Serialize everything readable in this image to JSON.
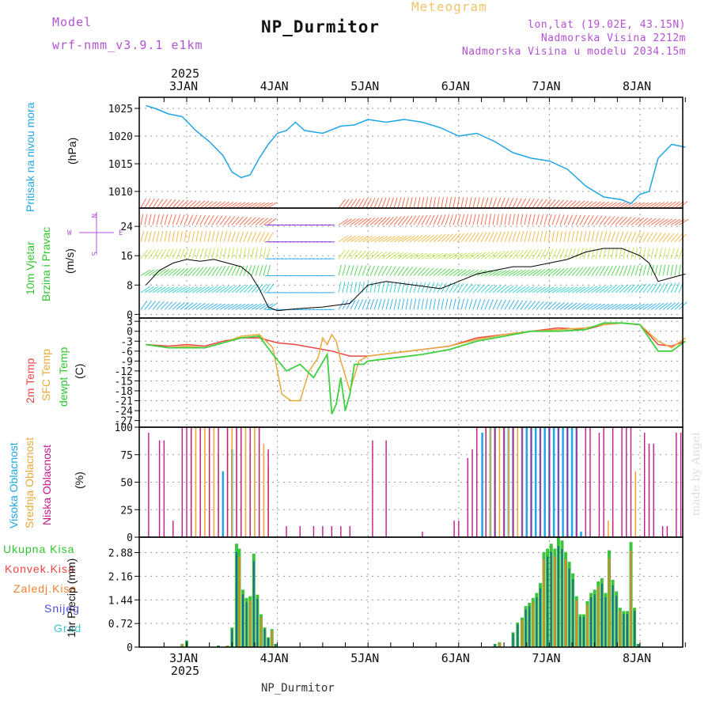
{
  "header": {
    "model_label": "Model",
    "model_name": "wrf-nmm_v3.9.1 e1km",
    "title": "NP_Durmitor",
    "meteogram_label": "Meteogram",
    "coords": "lon,lat (19.02E, 43.15N)",
    "altitude": "Nadmorska Visina 2212m",
    "model_altitude": "Nadmorska Visina u modelu 2034.15m"
  },
  "time_axis": {
    "year": "2025",
    "days": [
      "3JAN",
      "4JAN",
      "5JAN",
      "6JAN",
      "7JAN",
      "8JAN"
    ]
  },
  "footer": {
    "station": "NP_Durmitor",
    "credit": "made by Angel"
  },
  "colors": {
    "pressure": "#1fa6e6",
    "temp2m": "#ee4444",
    "sfc": "#e8a93a",
    "dew": "#3fcf3f",
    "cloud_high": "#1fa6e6",
    "cloud_mid": "#e8a93a",
    "cloud_low": "#c41a8a",
    "rain_total": "#3cc43c",
    "rain_conv": "#ee4444",
    "rain_frz": "#f07f2f",
    "snow": "#4b4bd8",
    "hail": "#3cc8c8"
  },
  "chart_data": [
    {
      "type": "line",
      "ylabel_left": "Pritisak na nivou mora",
      "ylabel_unit": "(hPa)",
      "y_ticks": [
        "1025",
        "1020",
        "1015",
        "1010"
      ],
      "ylim": [
        1007,
        1027
      ],
      "x_day_range": [
        2.55,
        8.55
      ],
      "series": [
        {
          "name": "Pritisak na nivou mora",
          "x": [
            2.55,
            2.65,
            2.8,
            2.95,
            3.1,
            3.25,
            3.4,
            3.5,
            3.6,
            3.7,
            3.8,
            3.9,
            4.0,
            4.1,
            4.2,
            4.3,
            4.5,
            4.7,
            4.85,
            5.0,
            5.2,
            5.4,
            5.6,
            5.8,
            6.0,
            6.2,
            6.4,
            6.6,
            6.8,
            7.0,
            7.2,
            7.4,
            7.6,
            7.8,
            7.9,
            8.0,
            8.1,
            8.2,
            8.35,
            8.5
          ],
          "values": [
            1025.5,
            1025,
            1024,
            1023.5,
            1021,
            1019,
            1016.5,
            1013.5,
            1012.5,
            1013,
            1016,
            1018.5,
            1020.5,
            1021,
            1022.5,
            1021,
            1020.5,
            1021.8,
            1022,
            1023,
            1022.5,
            1023,
            1022.5,
            1021.5,
            1020,
            1020.5,
            1019,
            1017,
            1016,
            1015.5,
            1014,
            1011,
            1009,
            1008.5,
            1007.8,
            1009.5,
            1010,
            1016,
            1018.5,
            1018
          ]
        }
      ]
    },
    {
      "type": "line",
      "ylabel_left": "10m Vjetar",
      "ylabel_left2": "Brzina i Pravac",
      "ylabel_unit": "(m/s)",
      "y_ticks": [
        "24",
        "16",
        "8",
        "0"
      ],
      "ylim": [
        -1,
        29
      ],
      "x_day_range": [
        2.55,
        8.55
      ],
      "compass": {
        "n": "N",
        "w": "W",
        "e": "E",
        "s": "S"
      },
      "series": [
        {
          "name": "wind speed",
          "x": [
            2.55,
            2.7,
            2.85,
            3.0,
            3.15,
            3.3,
            3.45,
            3.6,
            3.7,
            3.8,
            3.9,
            4.0,
            4.2,
            4.5,
            4.8,
            5.0,
            5.2,
            5.5,
            5.8,
            6.0,
            6.2,
            6.4,
            6.6,
            6.8,
            7.0,
            7.2,
            7.4,
            7.6,
            7.8,
            8.0,
            8.1,
            8.2,
            8.35,
            8.5
          ],
          "values": [
            8,
            12,
            14,
            15,
            14.5,
            15,
            14,
            13,
            11,
            7,
            2,
            1,
            1.5,
            2,
            3,
            8,
            9,
            8,
            7,
            9,
            11,
            12,
            13,
            13,
            14,
            15,
            17,
            18,
            18,
            16,
            14,
            9,
            10,
            11
          ]
        }
      ]
    },
    {
      "type": "line",
      "ylabel_left": "2m Temp",
      "ylabel_left2": "SFC Temp",
      "ylabel_left3": "dewpt Temp",
      "ylabel_unit": "(C)",
      "y_ticks": [
        "3",
        "0",
        "-3",
        "-6",
        "-9",
        "-12",
        "-15",
        "-18",
        "-21",
        "-24",
        "-27"
      ],
      "ylim": [
        -29,
        4
      ],
      "x_day_range": [
        2.55,
        8.55
      ],
      "series": [
        {
          "name": "2m Temp",
          "x": [
            2.55,
            2.8,
            3.0,
            3.2,
            3.4,
            3.6,
            3.8,
            4.0,
            4.2,
            4.4,
            4.6,
            4.8,
            5.0,
            5.3,
            5.6,
            5.9,
            6.2,
            6.5,
            6.8,
            7.1,
            7.4,
            7.6,
            7.8,
            8.0,
            8.2,
            8.35,
            8.5
          ],
          "values": [
            -4,
            -4.5,
            -4,
            -4.5,
            -3,
            -2,
            -2,
            -3.5,
            -4,
            -5,
            -6,
            -7.5,
            -7.5,
            -6.5,
            -5.5,
            -4.5,
            -2,
            -1,
            0,
            1,
            0.5,
            2,
            2.5,
            2,
            -4,
            -4.5,
            -3
          ]
        },
        {
          "name": "SFC Temp",
          "x": [
            2.55,
            2.8,
            3.0,
            3.2,
            3.4,
            3.6,
            3.8,
            3.95,
            4.05,
            4.15,
            4.25,
            4.35,
            4.45,
            4.5,
            4.55,
            4.6,
            4.65,
            4.7,
            4.8,
            4.9,
            5.0,
            5.3,
            5.6,
            5.9,
            6.2,
            6.5,
            6.8,
            7.1,
            7.4,
            7.6,
            7.8,
            8.0,
            8.2,
            8.35,
            8.5
          ],
          "values": [
            -4,
            -5,
            -4.5,
            -5,
            -3.5,
            -1.5,
            -1,
            -5,
            -19,
            -21,
            -21,
            -12,
            -8,
            -2,
            -4,
            -1,
            -3,
            -9,
            -18,
            -9,
            -7.5,
            -6.5,
            -5.5,
            -4.5,
            -2.5,
            -1,
            0,
            0.5,
            1,
            2,
            2.5,
            2,
            -3,
            -5,
            -2
          ]
        },
        {
          "name": "dewpt Temp",
          "x": [
            2.55,
            2.8,
            3.0,
            3.2,
            3.4,
            3.6,
            3.8,
            3.95,
            4.1,
            4.25,
            4.4,
            4.55,
            4.6,
            4.65,
            4.7,
            4.75,
            4.8,
            4.85,
            4.95,
            5.0,
            5.3,
            5.6,
            5.9,
            6.2,
            6.5,
            6.8,
            7.1,
            7.4,
            7.6,
            7.8,
            8.0,
            8.2,
            8.35,
            8.5
          ],
          "values": [
            -4,
            -5,
            -5,
            -5,
            -3.5,
            -2,
            -1.5,
            -7,
            -12,
            -10,
            -14,
            -7,
            -25,
            -22,
            -14,
            -24,
            -19,
            -10,
            -10,
            -9,
            -8,
            -7,
            -5.5,
            -3,
            -1.5,
            0,
            0,
            0.5,
            2.5,
            2.5,
            2,
            -6,
            -6,
            -3
          ]
        }
      ]
    },
    {
      "type": "bar",
      "ylabel_left": "Visoka Oblacnost",
      "ylabel_left2": "Srednja Oblacnost",
      "ylabel_left3": "Niska Oblacnost",
      "ylabel_unit": "(%)",
      "y_ticks": [
        "100",
        "75",
        "50",
        "25",
        "0"
      ],
      "ylim": [
        0,
        100
      ],
      "x_day_range": [
        2.55,
        8.55
      ],
      "series": [
        {
          "name": "Visoka Oblacnost",
          "x": [
            3.4,
            3.5,
            6.26,
            6.35,
            6.4,
            6.5,
            6.55,
            6.6,
            6.7,
            6.75,
            6.8,
            6.85,
            6.9,
            6.95,
            7.0,
            7.05,
            7.1,
            7.15,
            7.2,
            7.25,
            7.3,
            7.35
          ],
          "values": [
            60,
            80,
            95,
            100,
            100,
            100,
            100,
            100,
            100,
            100,
            100,
            100,
            100,
            100,
            100,
            100,
            100,
            100,
            100,
            100,
            100,
            5
          ]
        },
        {
          "name": "Srednja Oblacnost",
          "x": [
            3.05,
            3.1,
            3.15,
            3.2,
            3.25,
            3.3,
            3.35,
            3.45,
            3.5,
            3.55,
            3.6,
            3.65,
            3.7,
            3.75,
            3.8,
            3.85,
            3.9,
            6.3,
            6.35,
            6.4,
            6.45,
            6.5,
            6.55,
            6.6,
            6.65,
            6.7,
            7.3,
            7.65,
            7.7,
            7.95
          ],
          "values": [
            100,
            100,
            100,
            100,
            100,
            100,
            75,
            100,
            100,
            100,
            100,
            100,
            85,
            100,
            100,
            85,
            65,
            100,
            100,
            100,
            100,
            100,
            100,
            100,
            100,
            100,
            100,
            15,
            15,
            60
          ]
        },
        {
          "name": "Niska Oblacnost",
          "x": [
            2.58,
            2.7,
            2.75,
            2.85,
            2.95,
            3.0,
            3.05,
            3.15,
            3.25,
            3.35,
            3.45,
            3.55,
            3.6,
            3.7,
            3.8,
            3.9,
            4.1,
            4.25,
            4.4,
            4.5,
            4.6,
            4.7,
            4.8,
            5.05,
            5.2,
            5.6,
            5.95,
            6.0,
            6.1,
            6.15,
            6.2,
            6.3,
            6.4,
            6.5,
            6.6,
            6.7,
            6.8,
            6.9,
            7.0,
            7.1,
            7.2,
            7.3,
            7.4,
            7.45,
            7.55,
            7.6,
            7.7,
            7.8,
            7.85,
            7.9,
            8.05,
            8.1,
            8.15,
            8.25,
            8.3,
            8.4,
            8.45
          ],
          "values": [
            95,
            88,
            88,
            15,
            100,
            100,
            100,
            100,
            100,
            100,
            100,
            100,
            100,
            100,
            100,
            80,
            10,
            10,
            10,
            10,
            10,
            10,
            10,
            88,
            88,
            5,
            15,
            15,
            72,
            80,
            100,
            100,
            100,
            100,
            100,
            100,
            100,
            100,
            100,
            100,
            100,
            100,
            100,
            100,
            95,
            100,
            100,
            100,
            100,
            100,
            95,
            85,
            85,
            10,
            10,
            95,
            95
          ]
        }
      ]
    },
    {
      "type": "bar",
      "ylabel_left": "Ukupna Kisa",
      "ylabel_left2": "Konvek.Kisa",
      "ylabel_left3": "Zaledj.Kisa",
      "ylabel_left4": "Snijeg",
      "ylabel_left5": "Grad",
      "ylabel_unit": "1hr Precip (mm)",
      "y_ticks": [
        "2.88",
        "2.16",
        "1.44",
        "0.72",
        "0"
      ],
      "ylim": [
        0,
        3.35
      ],
      "x_day_range": [
        2.55,
        8.55
      ],
      "series": [
        {
          "name": "Ukupna Kisa",
          "x": [
            2.95,
            3.0,
            3.35,
            3.45,
            3.5,
            3.55,
            3.58,
            3.62,
            3.66,
            3.7,
            3.74,
            3.78,
            3.82,
            3.86,
            3.9,
            3.94,
            3.98,
            6.4,
            6.45,
            6.6,
            6.65,
            6.7,
            6.74,
            6.78,
            6.82,
            6.86,
            6.9,
            6.94,
            6.98,
            7.02,
            7.06,
            7.1,
            7.14,
            7.18,
            7.22,
            7.26,
            7.3,
            7.34,
            7.38,
            7.42,
            7.46,
            7.5,
            7.54,
            7.58,
            7.62,
            7.66,
            7.7,
            7.74,
            7.78,
            7.82,
            7.86,
            7.9,
            7.94,
            7.98
          ],
          "values": [
            0.1,
            0.2,
            0.05,
            0.05,
            0.6,
            3.15,
            3.0,
            1.75,
            1.5,
            1.55,
            2.85,
            1.6,
            1.0,
            0.6,
            0.3,
            0.55,
            0.1,
            0.1,
            0.15,
            0.45,
            0.75,
            0.9,
            1.25,
            1.35,
            1.5,
            1.65,
            1.95,
            2.9,
            3.0,
            3.15,
            3.0,
            3.35,
            3.25,
            2.9,
            2.6,
            2.25,
            1.55,
            1.0,
            1.0,
            1.4,
            1.65,
            1.75,
            2.0,
            2.1,
            1.65,
            2.95,
            2.05,
            1.7,
            1.2,
            1.1,
            1.1,
            3.2,
            1.2,
            0.1
          ]
        }
      ]
    }
  ]
}
